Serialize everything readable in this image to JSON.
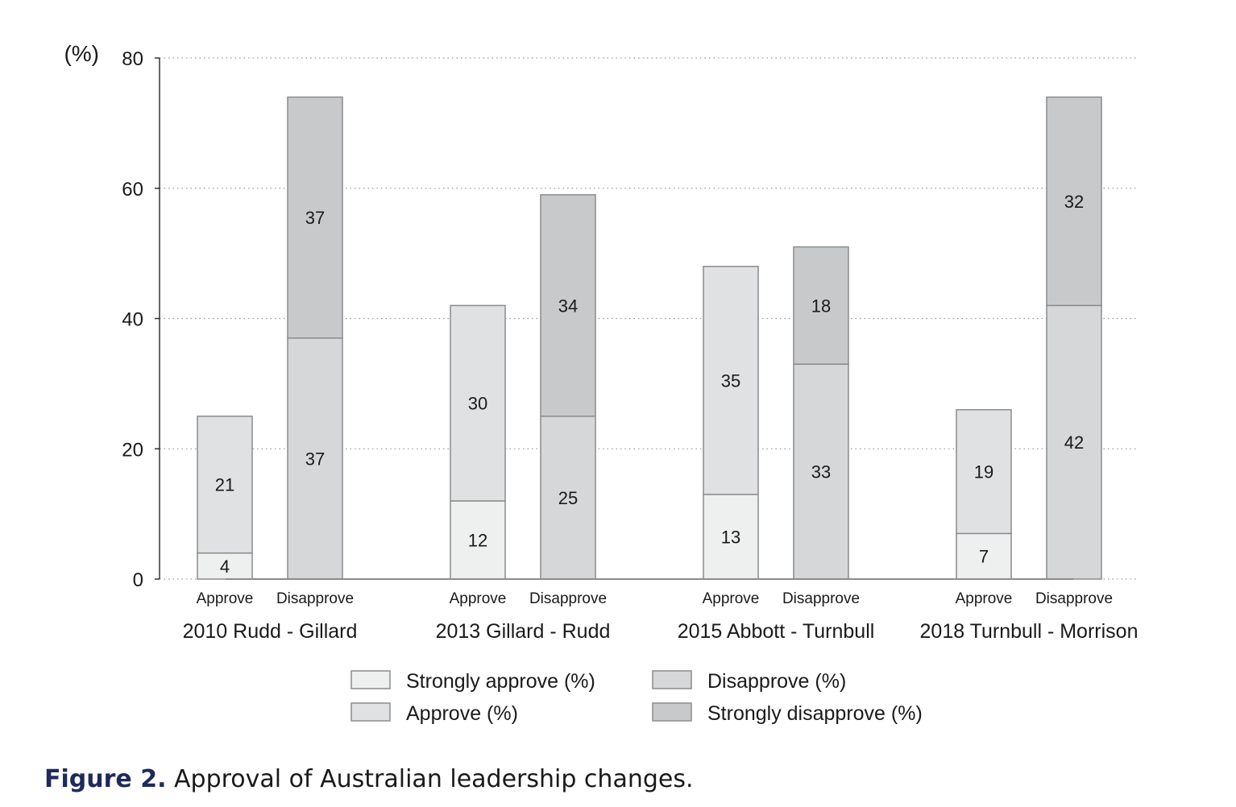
{
  "chart_data": {
    "type": "bar",
    "stacked": true,
    "yunit": "(%)",
    "ylim": [
      0,
      80
    ],
    "yticks": [
      0,
      20,
      40,
      60,
      80
    ],
    "grid": true,
    "legend_position": "bottom",
    "groups": [
      {
        "name": "2010 Rudd - Gillard",
        "bars": [
          {
            "label": "Approve",
            "segments": [
              {
                "series": "Strongly approve (%)",
                "value": 4
              },
              {
                "series": "Approve (%)",
                "value": 21
              }
            ]
          },
          {
            "label": "Disapprove",
            "segments": [
              {
                "series": "Disapprove (%)",
                "value": 37
              },
              {
                "series": "Strongly disapprove (%)",
                "value": 37
              }
            ]
          }
        ]
      },
      {
        "name": "2013 Gillard - Rudd",
        "bars": [
          {
            "label": "Approve",
            "segments": [
              {
                "series": "Strongly approve (%)",
                "value": 12
              },
              {
                "series": "Approve (%)",
                "value": 30
              }
            ]
          },
          {
            "label": "Disapprove",
            "segments": [
              {
                "series": "Disapprove (%)",
                "value": 25
              },
              {
                "series": "Strongly disapprove (%)",
                "value": 34
              }
            ]
          }
        ]
      },
      {
        "name": "2015 Abbott - Turnbull",
        "bars": [
          {
            "label": "Approve",
            "segments": [
              {
                "series": "Strongly approve (%)",
                "value": 13
              },
              {
                "series": "Approve (%)",
                "value": 35
              }
            ]
          },
          {
            "label": "Disapprove",
            "segments": [
              {
                "series": "Disapprove (%)",
                "value": 33
              },
              {
                "series": "Strongly disapprove (%)",
                "value": 18
              }
            ]
          }
        ]
      },
      {
        "name": "2018 Turnbull - Morrison",
        "bars": [
          {
            "label": "Approve",
            "segments": [
              {
                "series": "Strongly approve (%)",
                "value": 7
              },
              {
                "series": "Approve (%)",
                "value": 19
              }
            ]
          },
          {
            "label": "Disapprove",
            "segments": [
              {
                "series": "Disapprove (%)",
                "value": 42
              },
              {
                "series": "Strongly disapprove (%)",
                "value": 32
              }
            ]
          }
        ]
      }
    ],
    "series": [
      {
        "name": "Strongly approve (%)",
        "color": "#eeefef"
      },
      {
        "name": "Approve (%)",
        "color": "#e0e1e3"
      },
      {
        "name": "Disapprove (%)",
        "color": "#d6d7d9"
      },
      {
        "name": "Strongly disapprove (%)",
        "color": "#c8c9cb"
      }
    ]
  },
  "caption": {
    "label": "Figure 2.",
    "text": "Approval of Australian leadership changes."
  }
}
